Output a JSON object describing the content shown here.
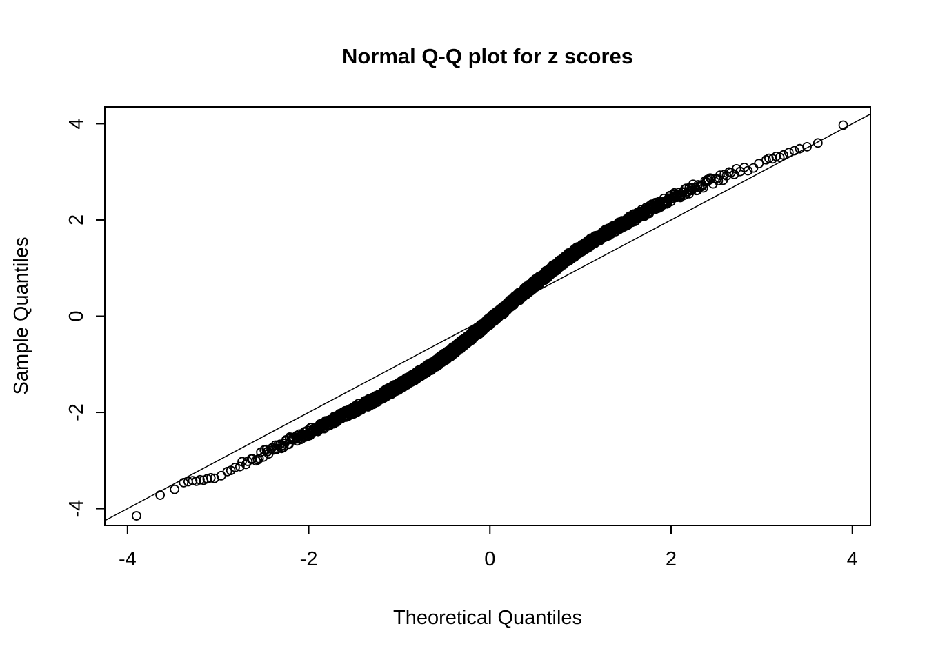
{
  "chart_data": {
    "type": "scatter",
    "title": "Normal Q-Q plot for z scores",
    "xlabel": "Theoretical Quantiles",
    "ylabel": "Sample Quantiles",
    "xlim": [
      -4.25,
      4.2
    ],
    "ylim": [
      -4.35,
      4.35
    ],
    "x_ticks": [
      -4,
      -2,
      0,
      2,
      4
    ],
    "y_ticks": [
      -4,
      -2,
      0,
      2,
      4
    ],
    "x_tick_labels": [
      "-4",
      "-2",
      "0",
      "2",
      "4"
    ],
    "y_tick_labels": [
      "-4",
      "-2",
      "0",
      "2",
      "4"
    ],
    "grid": false,
    "legend": "none",
    "reference_line": {
      "intercept": 0,
      "slope": 1
    },
    "marker": "open-circle",
    "n_band_points": 3000,
    "band_jitter_y": 0.08,
    "band_x_limit": 3.02,
    "curve_anchors": {
      "x": [
        -3.3,
        -3.0,
        -2.5,
        -2.0,
        -1.5,
        -1.0,
        -0.5,
        0.0,
        0.5,
        1.0,
        1.5,
        2.0,
        2.5,
        3.0,
        3.3
      ],
      "y": [
        -3.44,
        -3.33,
        -2.85,
        -2.42,
        -1.95,
        -1.45,
        -0.85,
        -0.1,
        0.68,
        1.4,
        1.95,
        2.45,
        2.85,
        3.18,
        3.35
      ]
    },
    "tail_points_low": [
      [
        -3.9,
        -4.15
      ],
      [
        -3.64,
        -3.72
      ],
      [
        -3.48,
        -3.6
      ],
      [
        -3.38,
        -3.46
      ],
      [
        -3.33,
        -3.44
      ],
      [
        -3.28,
        -3.42
      ],
      [
        -3.24,
        -3.43
      ],
      [
        -3.2,
        -3.4
      ],
      [
        -3.16,
        -3.41
      ],
      [
        -3.12,
        -3.38
      ],
      [
        -3.08,
        -3.36
      ],
      [
        -3.04,
        -3.37
      ]
    ],
    "tail_points_high": [
      [
        3.05,
        3.25
      ],
      [
        3.08,
        3.28
      ],
      [
        3.12,
        3.27
      ],
      [
        3.16,
        3.32
      ],
      [
        3.2,
        3.3
      ],
      [
        3.24,
        3.35
      ],
      [
        3.3,
        3.4
      ],
      [
        3.36,
        3.44
      ],
      [
        3.42,
        3.48
      ],
      [
        3.5,
        3.52
      ],
      [
        3.62,
        3.6
      ],
      [
        3.9,
        3.97
      ]
    ]
  },
  "colors": {
    "point": "#000000",
    "reference_line": "#000000",
    "axis": "#000000",
    "background": "#ffffff"
  }
}
